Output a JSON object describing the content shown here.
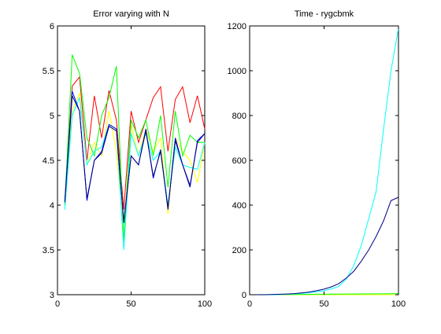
{
  "chart_data": [
    {
      "type": "line",
      "title": "Error varying with N",
      "xlabel": "",
      "ylabel": "",
      "xlim": [
        0,
        100
      ],
      "ylim": [
        3,
        6
      ],
      "xticks": [
        0,
        50,
        100
      ],
      "yticks": [
        3,
        3.5,
        4,
        4.5,
        5,
        5.5,
        6
      ],
      "grid": false,
      "x": [
        5,
        10,
        15,
        20,
        25,
        30,
        35,
        40,
        45,
        50,
        55,
        60,
        65,
        70,
        75,
        80,
        85,
        90,
        95,
        100
      ],
      "series": [
        {
          "color": "#ff0000",
          "values": [
            4.05,
            5.33,
            5.43,
            4.5,
            5.22,
            4.75,
            5.28,
            4.95,
            3.95,
            5.05,
            4.7,
            4.95,
            5.2,
            5.32,
            4.6,
            5.18,
            5.32,
            4.92,
            5.22,
            4.85
          ]
        },
        {
          "color": "#ffff00",
          "values": [
            4.1,
            5.05,
            5.25,
            4.45,
            4.7,
            4.55,
            5.05,
            4.6,
            3.7,
            4.9,
            4.55,
            4.85,
            4.6,
            4.75,
            3.9,
            4.75,
            4.6,
            4.5,
            4.25,
            4.7
          ]
        },
        {
          "color": "#00ff00",
          "values": [
            4.0,
            5.68,
            5.47,
            4.75,
            4.55,
            5.0,
            5.2,
            5.55,
            3.6,
            4.95,
            4.75,
            4.95,
            4.55,
            5.0,
            4.2,
            5.05,
            4.55,
            4.78,
            4.7,
            4.7
          ]
        },
        {
          "color": "#00ffff",
          "values": [
            3.95,
            5.0,
            5.2,
            4.45,
            4.6,
            4.65,
            4.9,
            4.85,
            3.5,
            4.8,
            4.55,
            4.8,
            4.5,
            4.6,
            4.0,
            4.65,
            4.45,
            4.42,
            4.4,
            4.7
          ]
        },
        {
          "color": "#0000ff",
          "values": [
            4.05,
            5.27,
            5.05,
            4.05,
            4.5,
            4.6,
            4.9,
            4.85,
            3.8,
            4.55,
            4.45,
            4.85,
            4.3,
            4.62,
            3.95,
            4.75,
            4.45,
            4.2,
            4.72,
            4.8
          ]
        },
        {
          "color": "#000080",
          "values": [
            4.03,
            5.22,
            5.05,
            4.07,
            4.5,
            4.58,
            4.88,
            4.83,
            3.82,
            4.55,
            4.45,
            4.83,
            4.32,
            4.6,
            3.97,
            4.72,
            4.45,
            4.22,
            4.7,
            4.8
          ]
        }
      ]
    },
    {
      "type": "line",
      "title": "Time - rygcbmk",
      "xlabel": "",
      "ylabel": "",
      "xlim": [
        0,
        100
      ],
      "ylim": [
        0,
        1200
      ],
      "xticks": [
        0,
        50,
        100
      ],
      "yticks": [
        0,
        200,
        400,
        600,
        800,
        1000,
        1200
      ],
      "grid": false,
      "x": [
        5,
        10,
        15,
        20,
        25,
        30,
        35,
        40,
        45,
        50,
        55,
        60,
        65,
        70,
        75,
        80,
        85,
        90,
        95,
        100
      ],
      "series": [
        {
          "color": "#ff0000",
          "values": [
            0,
            0,
            0,
            0,
            0,
            0,
            0,
            0,
            0,
            0,
            0,
            0,
            0,
            0,
            0,
            0,
            0,
            0,
            0,
            0
          ]
        },
        {
          "color": "#ffff00",
          "values": [
            0,
            0,
            0,
            0,
            0,
            0,
            0,
            0,
            0,
            0,
            0,
            0,
            0,
            0,
            0,
            0,
            0,
            0,
            0,
            0
          ]
        },
        {
          "color": "#00ff00",
          "values": [
            0.5,
            0.5,
            0.5,
            1,
            1,
            1,
            1.5,
            1.5,
            2,
            2,
            2.5,
            2.5,
            3,
            3,
            3.5,
            3.5,
            4,
            4,
            4.5,
            5
          ]
        },
        {
          "color": "#00ffff",
          "values": [
            0,
            0,
            0,
            1,
            2,
            4,
            6,
            9,
            13,
            18,
            26,
            38,
            70,
            130,
            220,
            340,
            460,
            740,
            1000,
            1190
          ]
        },
        {
          "color": "#000080",
          "values": [
            0,
            0,
            1,
            2,
            3,
            5,
            8,
            12,
            18,
            25,
            35,
            50,
            75,
            105,
            150,
            200,
            260,
            330,
            420,
            435
          ]
        }
      ]
    }
  ]
}
